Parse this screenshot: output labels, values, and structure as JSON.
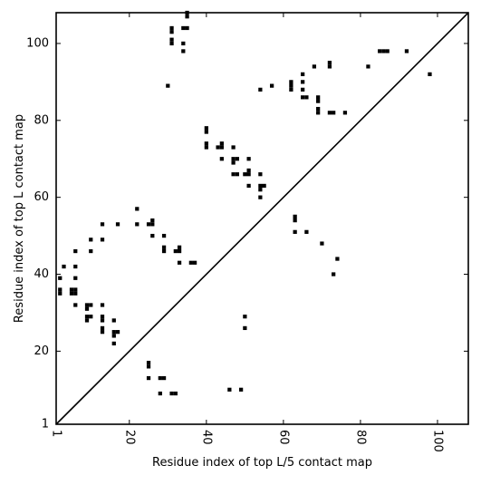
{
  "chart_data": {
    "type": "scatter",
    "title": "",
    "xlabel": "Residue index of top L/5 contact map",
    "ylabel": "Residue index of top L contact map",
    "xlim": [
      1,
      108
    ],
    "ylim": [
      1,
      108
    ],
    "x_ticks": [
      1,
      20,
      40,
      60,
      80,
      100
    ],
    "y_ticks": [
      1,
      20,
      40,
      60,
      80,
      100
    ],
    "x_tick_labels": [
      "1",
      "20",
      "40",
      "60",
      "80",
      "100"
    ],
    "y_tick_labels": [
      "1",
      "20",
      "40",
      "60",
      "80",
      "100"
    ],
    "x_tick_rotation": -90,
    "grid": false,
    "marker": "square",
    "marker_color": "#000000",
    "diagonal": {
      "from": [
        1,
        1
      ],
      "to": [
        108,
        108
      ],
      "color": "#000000"
    },
    "series": [
      {
        "points": [
          [
            2,
            35
          ],
          [
            2,
            36
          ],
          [
            2,
            39
          ],
          [
            3,
            42
          ],
          [
            5,
            35
          ],
          [
            5,
            36
          ],
          [
            6,
            35
          ],
          [
            6,
            36
          ],
          [
            6,
            32
          ],
          [
            6,
            39
          ],
          [
            6,
            42
          ],
          [
            6,
            46
          ],
          [
            9,
            28
          ],
          [
            9,
            29
          ],
          [
            9,
            31
          ],
          [
            9,
            32
          ],
          [
            10,
            29
          ],
          [
            10,
            32
          ],
          [
            10,
            46
          ],
          [
            10,
            49
          ],
          [
            13,
            28
          ],
          [
            13,
            29
          ],
          [
            13,
            32
          ],
          [
            13,
            25
          ],
          [
            13,
            26
          ],
          [
            13,
            49
          ],
          [
            13,
            53
          ],
          [
            16,
            22
          ],
          [
            16,
            24
          ],
          [
            16,
            25
          ],
          [
            16,
            28
          ],
          [
            17,
            25
          ],
          [
            17,
            53
          ],
          [
            22,
            53
          ],
          [
            22,
            57
          ],
          [
            25,
            13
          ],
          [
            25,
            16
          ],
          [
            25,
            17
          ],
          [
            25,
            53
          ],
          [
            26,
            53
          ],
          [
            26,
            54
          ],
          [
            26,
            50
          ],
          [
            28,
            9
          ],
          [
            28,
            13
          ],
          [
            29,
            13
          ],
          [
            29,
            46
          ],
          [
            29,
            47
          ],
          [
            29,
            50
          ],
          [
            30,
            89
          ],
          [
            31,
            9
          ],
          [
            31,
            100
          ],
          [
            31,
            101
          ],
          [
            31,
            103
          ],
          [
            31,
            104
          ],
          [
            32,
            9
          ],
          [
            32,
            46
          ],
          [
            33,
            46
          ],
          [
            33,
            47
          ],
          [
            33,
            43
          ],
          [
            34,
            98
          ],
          [
            34,
            100
          ],
          [
            34,
            104
          ],
          [
            35,
            104
          ],
          [
            35,
            107
          ],
          [
            35,
            108
          ],
          [
            36,
            43
          ],
          [
            37,
            43
          ],
          [
            40,
            73
          ],
          [
            40,
            74
          ],
          [
            40,
            77
          ],
          [
            40,
            78
          ],
          [
            43,
            73
          ],
          [
            44,
            70
          ],
          [
            44,
            73
          ],
          [
            44,
            74
          ],
          [
            46,
            10
          ],
          [
            47,
            66
          ],
          [
            47,
            69
          ],
          [
            47,
            70
          ],
          [
            47,
            73
          ],
          [
            48,
            66
          ],
          [
            48,
            70
          ],
          [
            49,
            10
          ],
          [
            50,
            26
          ],
          [
            50,
            29
          ],
          [
            50,
            66
          ],
          [
            51,
            63
          ],
          [
            51,
            66
          ],
          [
            51,
            67
          ],
          [
            51,
            70
          ],
          [
            54,
            60
          ],
          [
            54,
            62
          ],
          [
            54,
            63
          ],
          [
            54,
            66
          ],
          [
            54,
            88
          ],
          [
            55,
            63
          ],
          [
            57,
            89
          ],
          [
            62,
            88
          ],
          [
            62,
            89
          ],
          [
            62,
            90
          ],
          [
            63,
            51
          ],
          [
            63,
            54
          ],
          [
            63,
            55
          ],
          [
            65,
            86
          ],
          [
            65,
            88
          ],
          [
            65,
            90
          ],
          [
            65,
            92
          ],
          [
            66,
            51
          ],
          [
            66,
            86
          ],
          [
            68,
            94
          ],
          [
            69,
            82
          ],
          [
            69,
            83
          ],
          [
            69,
            85
          ],
          [
            69,
            86
          ],
          [
            70,
            48
          ],
          [
            72,
            82
          ],
          [
            72,
            94
          ],
          [
            72,
            95
          ],
          [
            73,
            40
          ],
          [
            73,
            82
          ],
          [
            74,
            44
          ],
          [
            76,
            82
          ],
          [
            82,
            94
          ],
          [
            85,
            98
          ],
          [
            86,
            98
          ],
          [
            87,
            98
          ],
          [
            92,
            98
          ],
          [
            98,
            92
          ]
        ]
      }
    ]
  }
}
